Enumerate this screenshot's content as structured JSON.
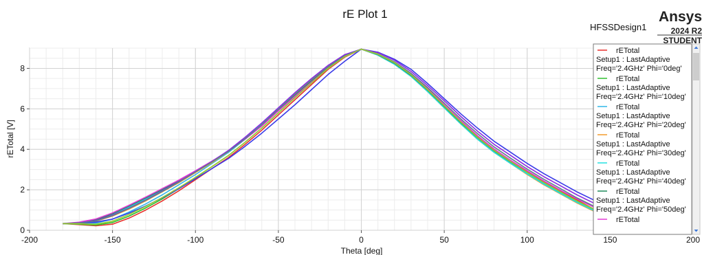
{
  "window": {
    "design_name": "HFSSDesign1"
  },
  "branding": {
    "name": "Ansys",
    "version": "2024 R2",
    "edition": "STUDENT"
  },
  "chart_data": {
    "type": "line",
    "title": "rE Plot 1",
    "xlabel": "Theta [deg]",
    "ylabel": "rETotal [V]",
    "xlim": [
      -200,
      200
    ],
    "ylim": [
      0,
      9
    ],
    "xticks": [
      -200,
      -150,
      -100,
      -50,
      0,
      50,
      100,
      150,
      200
    ],
    "yticks": [
      0,
      2,
      4,
      6,
      8
    ],
    "grid": true,
    "legend_position": "right",
    "x": [
      -180,
      -170,
      -160,
      -150,
      -140,
      -130,
      -120,
      -110,
      -100,
      -90,
      -80,
      -70,
      -60,
      -50,
      -40,
      -30,
      -20,
      -10,
      0,
      10,
      20,
      30,
      40,
      50,
      60,
      70,
      80,
      90,
      100,
      110,
      120,
      130,
      140,
      150,
      160,
      170,
      180
    ],
    "series": [
      {
        "name": "rETotal",
        "legend_lines": [
          "rETotal",
          "Setup1 : LastAdaptive",
          "Freq='2.4GHz' Phi='0deg'"
        ],
        "color": "#e8312c",
        "values": [
          0.33,
          0.28,
          0.22,
          0.3,
          0.6,
          1.0,
          1.45,
          1.95,
          2.5,
          3.05,
          3.6,
          4.25,
          4.95,
          5.7,
          6.45,
          7.2,
          7.95,
          8.55,
          8.95,
          8.7,
          8.3,
          7.75,
          7.0,
          6.2,
          5.4,
          4.65,
          4.0,
          3.45,
          2.9,
          2.4,
          1.95,
          1.5,
          1.05,
          0.65,
          0.45,
          0.35,
          0.33
        ]
      },
      {
        "name": "rETotal",
        "legend_lines": [
          "rETotal",
          "Setup1 : LastAdaptive",
          "Freq='2.4GHz' Phi='10deg'"
        ],
        "color": "#2fbf2f",
        "values": [
          0.33,
          0.3,
          0.26,
          0.38,
          0.7,
          1.1,
          1.55,
          2.05,
          2.6,
          3.15,
          3.7,
          4.35,
          5.05,
          5.8,
          6.55,
          7.3,
          8.0,
          8.6,
          8.95,
          8.7,
          8.3,
          7.7,
          6.95,
          6.15,
          5.35,
          4.6,
          3.95,
          3.4,
          2.85,
          2.35,
          1.9,
          1.45,
          1.02,
          0.63,
          0.44,
          0.35,
          0.33
        ]
      },
      {
        "name": "rETotal",
        "legend_lines": [
          "rETotal",
          "Setup1 : LastAdaptive",
          "Freq='2.4GHz' Phi='20deg'"
        ],
        "color": "#2fb7e8",
        "values": [
          0.33,
          0.33,
          0.35,
          0.55,
          0.9,
          1.3,
          1.75,
          2.25,
          2.75,
          3.3,
          3.85,
          4.5,
          5.2,
          5.95,
          6.7,
          7.4,
          8.1,
          8.65,
          8.95,
          8.7,
          8.25,
          7.65,
          6.9,
          6.1,
          5.3,
          4.55,
          3.9,
          3.35,
          2.8,
          2.3,
          1.85,
          1.4,
          1.0,
          0.62,
          0.44,
          0.35,
          0.33
        ]
      },
      {
        "name": "rETotal",
        "legend_lines": [
          "rETotal",
          "Setup1 : LastAdaptive",
          "Freq='2.4GHz' Phi='30deg'"
        ],
        "color": "#f39a2b",
        "values": [
          0.33,
          0.35,
          0.45,
          0.7,
          1.05,
          1.45,
          1.9,
          2.35,
          2.85,
          3.35,
          3.9,
          4.55,
          5.25,
          6.0,
          6.75,
          7.45,
          8.1,
          8.65,
          8.95,
          8.65,
          8.2,
          7.6,
          6.85,
          6.05,
          5.25,
          4.5,
          3.85,
          3.3,
          2.75,
          2.25,
          1.8,
          1.35,
          0.95,
          0.6,
          0.43,
          0.35,
          0.33
        ]
      },
      {
        "name": "rETotal",
        "legend_lines": [
          "rETotal",
          "Setup1 : LastAdaptive",
          "Freq='2.4GHz' Phi='40deg'"
        ],
        "color": "#22e0e0",
        "values": [
          0.33,
          0.37,
          0.5,
          0.78,
          1.15,
          1.55,
          1.98,
          2.42,
          2.9,
          3.4,
          3.92,
          4.55,
          5.25,
          6.0,
          6.72,
          7.42,
          8.08,
          8.62,
          8.95,
          8.65,
          8.2,
          7.6,
          6.85,
          6.05,
          5.25,
          4.5,
          3.85,
          3.3,
          2.78,
          2.28,
          1.82,
          1.38,
          0.98,
          0.62,
          0.44,
          0.35,
          0.33
        ]
      },
      {
        "name": "rETotal",
        "legend_lines": [
          "rETotal",
          "Setup1 : LastAdaptive",
          "Freq='2.4GHz' Phi='50deg'"
        ],
        "color": "#1f8a5a",
        "values": [
          0.33,
          0.38,
          0.52,
          0.82,
          1.2,
          1.6,
          2.02,
          2.45,
          2.92,
          3.4,
          3.92,
          4.52,
          5.2,
          5.95,
          6.68,
          7.38,
          8.05,
          8.6,
          8.95,
          8.68,
          8.25,
          7.65,
          6.92,
          6.12,
          5.32,
          4.58,
          3.93,
          3.38,
          2.86,
          2.36,
          1.9,
          1.45,
          1.05,
          0.68,
          0.47,
          0.36,
          0.33
        ]
      },
      {
        "name": "rETotal",
        "legend_lines": [
          "rETotal"
        ],
        "color": "#e33ad6",
        "values": [
          0.33,
          0.4,
          0.56,
          0.86,
          1.24,
          1.64,
          2.06,
          2.48,
          2.94,
          3.42,
          3.92,
          4.5,
          5.15,
          5.9,
          6.62,
          7.32,
          8.0,
          8.58,
          8.95,
          8.7,
          8.28,
          7.7,
          6.98,
          6.2,
          5.42,
          4.68,
          4.02,
          3.46,
          2.94,
          2.44,
          1.98,
          1.55,
          1.15,
          0.78,
          0.52,
          0.38,
          0.33
        ]
      },
      {
        "name": "",
        "color": "#3a3ae8",
        "values": [
          0.33,
          0.36,
          0.4,
          0.55,
          0.85,
          1.2,
          1.6,
          2.05,
          2.55,
          3.05,
          3.55,
          4.15,
          4.8,
          5.5,
          6.2,
          6.95,
          7.7,
          8.35,
          8.95,
          8.8,
          8.45,
          7.95,
          7.25,
          6.5,
          5.75,
          5.05,
          4.4,
          3.85,
          3.3,
          2.8,
          2.35,
          1.9,
          1.5,
          1.1,
          0.75,
          0.5,
          0.33
        ]
      },
      {
        "name": "",
        "color": "#8a2be2",
        "values": [
          0.33,
          0.37,
          0.48,
          0.75,
          1.1,
          1.5,
          1.95,
          2.4,
          2.9,
          3.4,
          3.95,
          4.6,
          5.3,
          6.05,
          6.8,
          7.5,
          8.15,
          8.68,
          8.95,
          8.78,
          8.4,
          7.85,
          7.15,
          6.4,
          5.62,
          4.9,
          4.25,
          3.7,
          3.15,
          2.65,
          2.2,
          1.75,
          1.35,
          0.95,
          0.65,
          0.45,
          0.33
        ]
      },
      {
        "name": "",
        "color": "#5f7f8f",
        "values": [
          0.33,
          0.36,
          0.46,
          0.72,
          1.08,
          1.48,
          1.92,
          2.38,
          2.88,
          3.38,
          3.9,
          4.52,
          5.22,
          5.98,
          6.72,
          7.42,
          8.08,
          8.62,
          8.95,
          8.72,
          8.32,
          7.75,
          7.05,
          6.28,
          5.5,
          4.78,
          4.12,
          3.56,
          3.02,
          2.52,
          2.06,
          1.6,
          1.2,
          0.82,
          0.56,
          0.4,
          0.33
        ]
      },
      {
        "name": "",
        "color": "#9acd32",
        "values": [
          0.33,
          0.32,
          0.3,
          0.45,
          0.78,
          1.18,
          1.62,
          2.1,
          2.62,
          3.15,
          3.7,
          4.35,
          5.05,
          5.8,
          6.55,
          7.28,
          8.0,
          8.58,
          8.95,
          8.7,
          8.28,
          7.68,
          6.95,
          6.15,
          5.35,
          4.6,
          3.95,
          3.4,
          2.86,
          2.36,
          1.9,
          1.45,
          1.05,
          0.66,
          0.45,
          0.35,
          0.33
        ]
      }
    ]
  }
}
